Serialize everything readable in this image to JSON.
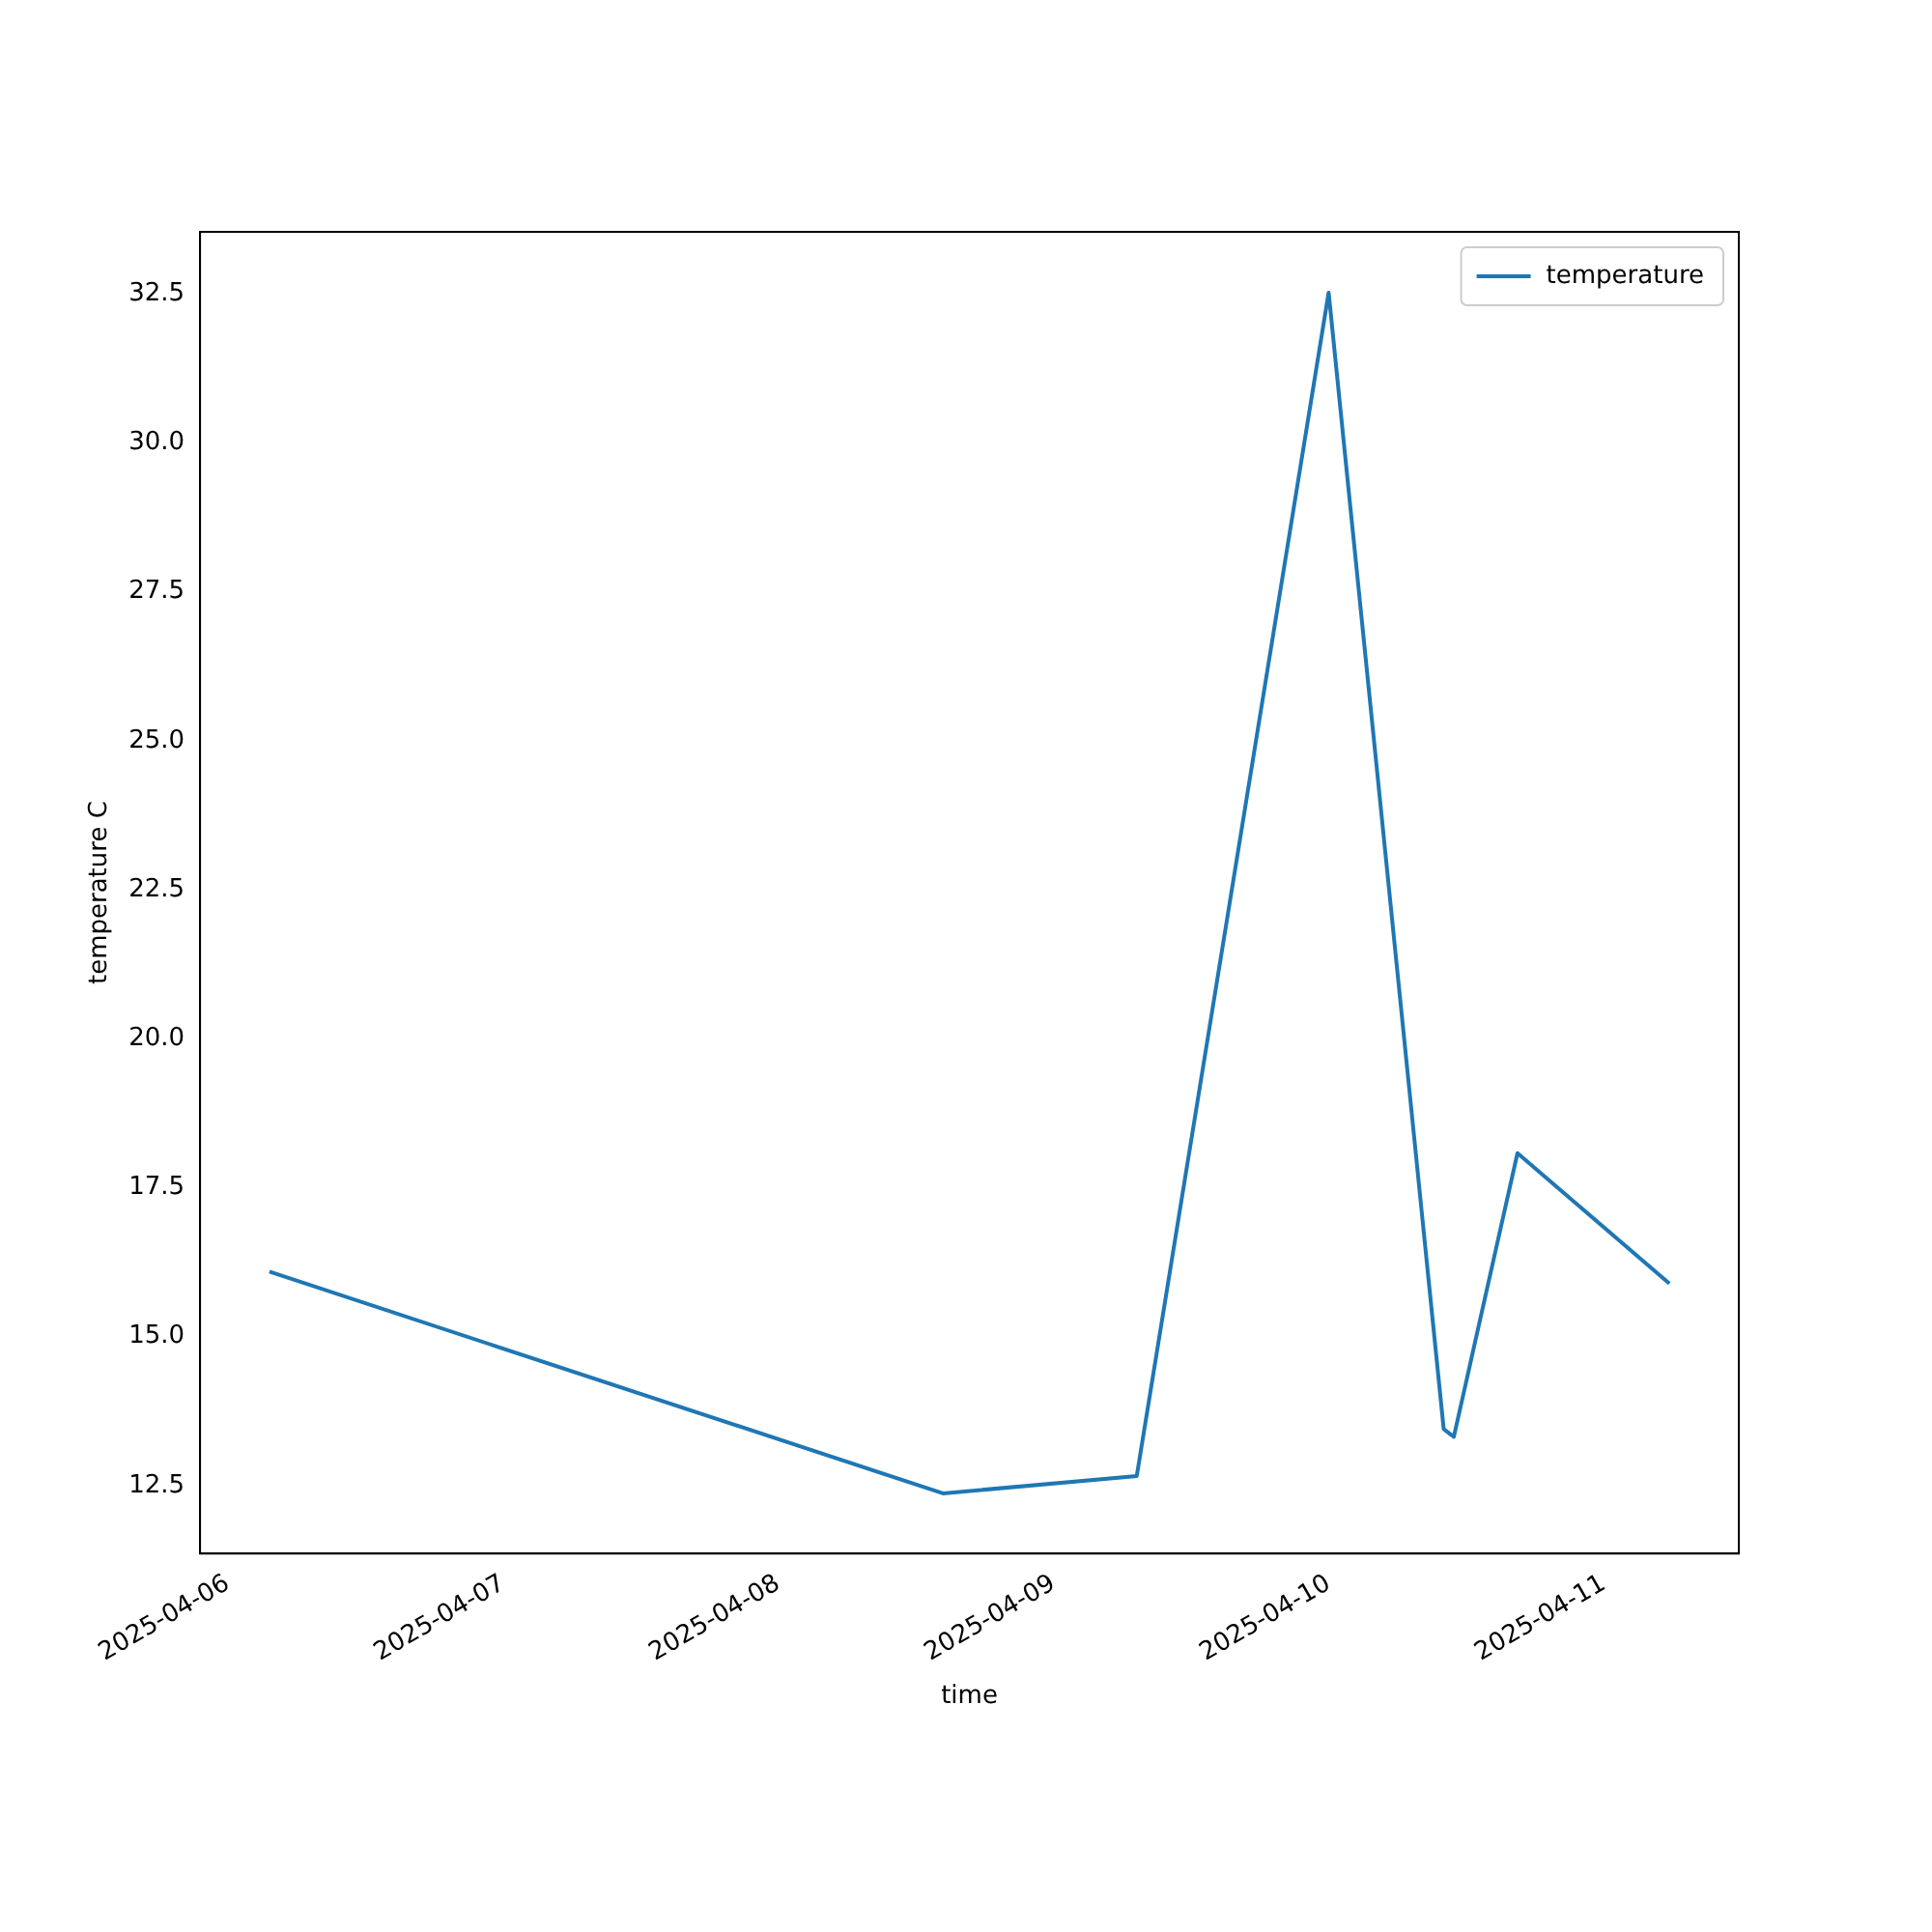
{
  "chart_data": {
    "type": "line",
    "xlabel": "time",
    "ylabel": "temperature C",
    "x": [
      "2025-04-06T03:38",
      "2025-04-08T14:22",
      "2025-04-09T07:16",
      "2025-04-10T00:00",
      "2025-04-10T10:02",
      "2025-04-10T10:55",
      "2025-04-10T16:28",
      "2025-04-11T05:43"
    ],
    "series": [
      {
        "name": "temperature",
        "color": "#1f77b4",
        "values": [
          16.09,
          12.37,
          12.66,
          32.52,
          13.45,
          13.32,
          18.08,
          15.89
        ]
      }
    ],
    "xlim": [
      "2025-04-05T21:35",
      "2025-04-11T11:46"
    ],
    "xticks": [
      "2025-04-06",
      "2025-04-07",
      "2025-04-08",
      "2025-04-09",
      "2025-04-10",
      "2025-04-11"
    ],
    "ylim": [
      11.36,
      33.54
    ],
    "yticks": [
      12.5,
      {
        "value": 15,
        "label": "15.0"
      },
      17.5,
      {
        "value": 20,
        "label": "20.0"
      },
      22.5,
      {
        "value": 25,
        "label": "25.0"
      },
      27.5,
      {
        "value": 30,
        "label": "30.0"
      },
      32.5
    ],
    "grid": false,
    "legend": "top right",
    "marker": "none",
    "line_style": "solid"
  }
}
